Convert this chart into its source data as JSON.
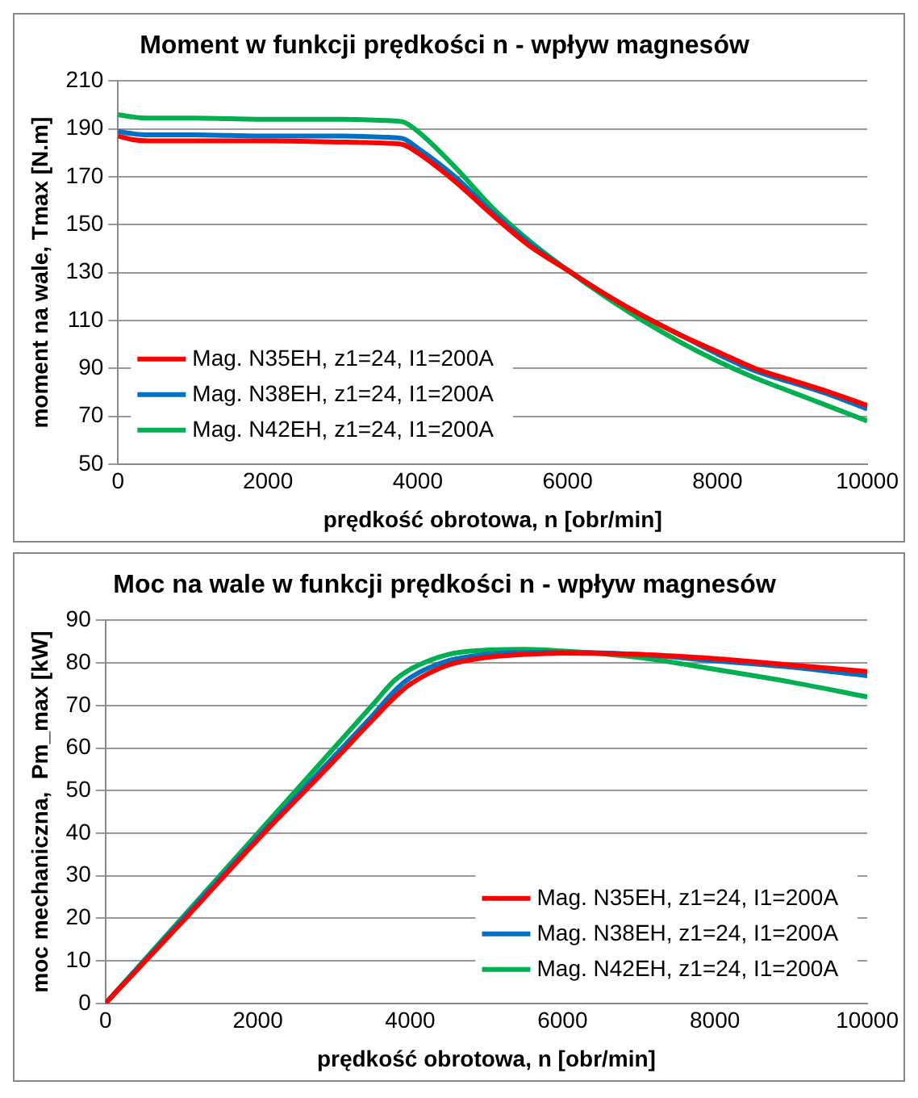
{
  "chart_data": [
    {
      "type": "line",
      "title": "Moment w funkcji prędkości n - wpływ magnesów",
      "xlabel": "prędkość obrotowa, n [obr/min]",
      "ylabel": "moment na wale, Tmax [N.m]",
      "xlim": [
        0,
        10000
      ],
      "xticks": [
        0,
        2000,
        4000,
        6000,
        8000,
        10000
      ],
      "ylim": [
        50,
        210
      ],
      "yticks": [
        50,
        70,
        90,
        110,
        130,
        150,
        170,
        190,
        210
      ],
      "grid": "y",
      "legend": "bottom left",
      "marker": "none",
      "line_style": "solid",
      "x": [
        0,
        200,
        400,
        1000,
        2000,
        3000,
        3600,
        3800,
        4000,
        4500,
        5000,
        5500,
        6000,
        6500,
        7000,
        7500,
        8000,
        8500,
        9000,
        9500,
        10000
      ],
      "series": [
        {
          "name": "Mag. N35EH, z1=24, I1=200A",
          "color": "#ff0000",
          "values": [
            187,
            185.5,
            185,
            185,
            185,
            184.5,
            184,
            183.5,
            180,
            168,
            154,
            141,
            131,
            121,
            112,
            104,
            97,
            90,
            85,
            80,
            74.5
          ]
        },
        {
          "name": "Mag. N38EH, z1=24, I1=200A",
          "color": "#0070c0",
          "values": [
            189,
            188,
            187.5,
            187.5,
            187,
            187,
            186.5,
            186,
            182,
            170,
            155,
            142,
            131,
            121,
            112,
            104,
            96,
            89,
            84,
            79,
            73
          ]
        },
        {
          "name": "Mag. N42EH, z1=24, I1=200A",
          "color": "#00b050",
          "values": [
            196,
            195,
            194.5,
            194.5,
            194,
            194,
            193.5,
            193,
            189,
            174,
            157,
            143,
            131,
            120,
            110,
            101,
            93,
            86,
            80,
            74,
            68
          ]
        }
      ]
    },
    {
      "type": "line",
      "title": "Moc na wale w funkcji prędkości n - wpływ magnesów",
      "xlabel": "prędkość obrotowa, n [obr/min]",
      "ylabel": "moc mechaniczna,  Pm_max [kW]",
      "xlim": [
        0,
        10000
      ],
      "xticks": [
        0,
        2000,
        4000,
        6000,
        8000,
        10000
      ],
      "ylim": [
        0,
        90
      ],
      "yticks": [
        0,
        10,
        20,
        30,
        40,
        50,
        60,
        70,
        80,
        90
      ],
      "grid": "y",
      "legend": "bottom right",
      "marker": "none",
      "line_style": "solid",
      "x": [
        0,
        1000,
        2000,
        3000,
        3500,
        3800,
        4000,
        4500,
        5000,
        5500,
        6000,
        7000,
        8000,
        9000,
        10000
      ],
      "series": [
        {
          "name": "Mag. N35EH, z1=24, I1=200A",
          "color": "#ff0000",
          "values": [
            0,
            19,
            38.5,
            57,
            66.5,
            72,
            75,
            79.5,
            81.3,
            82,
            82.3,
            82,
            81,
            79.5,
            78
          ]
        },
        {
          "name": "Mag. N38EH, z1=24, I1=200A",
          "color": "#0070c0",
          "values": [
            0,
            19.5,
            39,
            58,
            67.5,
            73.5,
            76.5,
            80.5,
            82,
            82.5,
            82.5,
            82,
            80.5,
            79,
            77
          ]
        },
        {
          "name": "Mag. N42EH, z1=24, I1=200A",
          "color": "#00b050",
          "values": [
            0,
            20,
            40,
            60,
            70,
            76,
            78.5,
            82,
            83,
            83.2,
            82.8,
            81.3,
            78.5,
            75.5,
            72
          ]
        }
      ]
    }
  ]
}
